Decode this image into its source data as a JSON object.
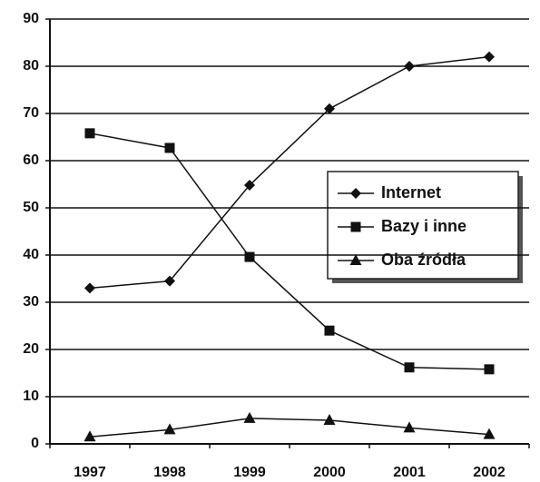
{
  "chart_data": {
    "type": "line",
    "categories": [
      "1997",
      "1998",
      "1999",
      "2000",
      "2001",
      "2002"
    ],
    "series": [
      {
        "name": "Internet",
        "color": "#111111",
        "marker": "diamond",
        "values": [
          33,
          34.5,
          54.8,
          71,
          80,
          82
        ]
      },
      {
        "name": "Bazy i inne",
        "color": "#111111",
        "marker": "square",
        "values": [
          65.8,
          62.7,
          39.6,
          24,
          16.2,
          15.8
        ]
      },
      {
        "name": "Oba źródła",
        "color": "#111111",
        "marker": "triangle",
        "values": [
          1.5,
          3,
          5.4,
          5,
          3.4,
          2
        ]
      }
    ],
    "ylim": [
      0,
      90
    ],
    "yticks": [
      0,
      10,
      20,
      30,
      40,
      50,
      60,
      70,
      80,
      90
    ],
    "grid": true
  }
}
